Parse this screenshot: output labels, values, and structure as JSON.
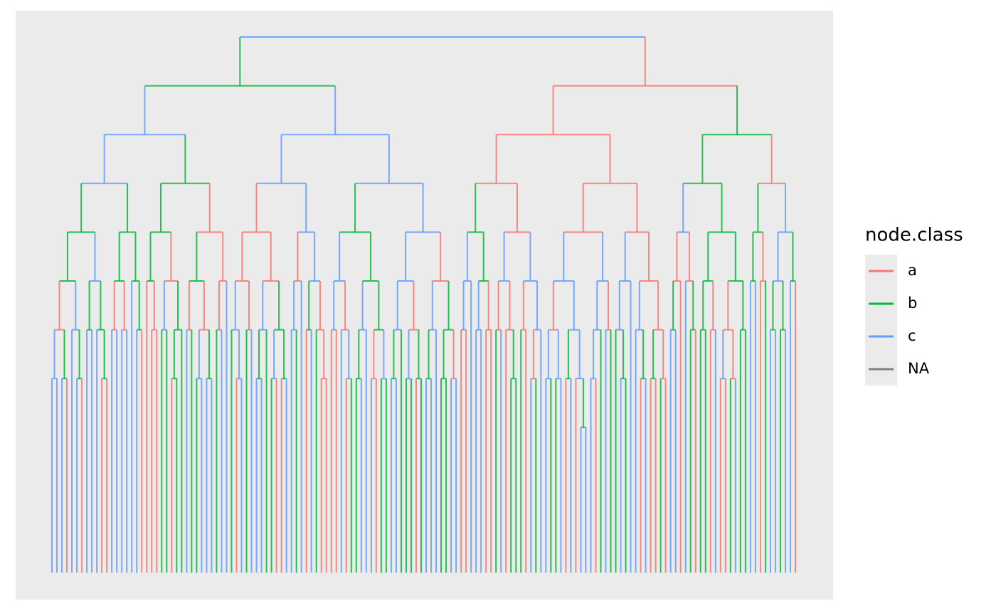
{
  "chart_data": {
    "type": "dendrogram",
    "legend_title": "node.class",
    "series": [
      {
        "name": "a",
        "color": "#F8766D"
      },
      {
        "name": "b",
        "color": "#00BA38"
      },
      {
        "name": "c",
        "color": "#619CFF"
      },
      {
        "name": "NA",
        "color": "#7F7F7F"
      }
    ]
  }
}
